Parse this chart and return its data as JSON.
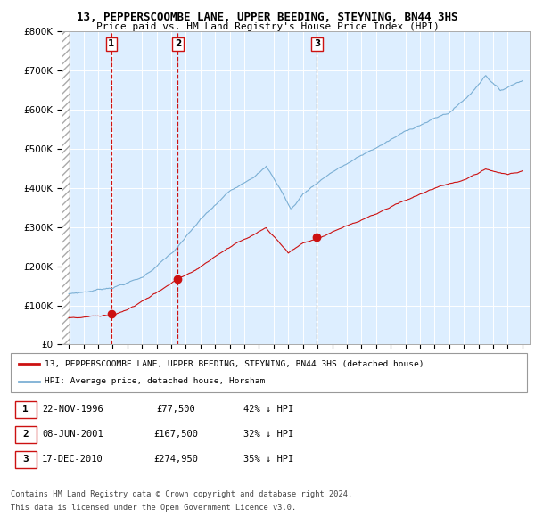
{
  "title_line1": "13, PEPPERSCOOMBE LANE, UPPER BEEDING, STEYNING, BN44 3HS",
  "title_line2": "Price paid vs. HM Land Registry's House Price Index (HPI)",
  "ylim": [
    0,
    800000
  ],
  "yticks": [
    0,
    100000,
    200000,
    300000,
    400000,
    500000,
    600000,
    700000,
    800000
  ],
  "ytick_labels": [
    "£0",
    "£100K",
    "£200K",
    "£300K",
    "£400K",
    "£500K",
    "£600K",
    "£700K",
    "£800K"
  ],
  "hpi_color": "#7bafd4",
  "price_color": "#cc1111",
  "plot_bg_color": "#ddeeff",
  "legend_house": "13, PEPPERSCOOMBE LANE, UPPER BEEDING, STEYNING, BN44 3HS (detached house)",
  "legend_hpi": "HPI: Average price, detached house, Horsham",
  "transactions": [
    {
      "num": 1,
      "date": "22-NOV-1996",
      "price": 77500,
      "pct": "42%",
      "dir": "↓",
      "year": 1996.9,
      "line_color": "#cc1111"
    },
    {
      "num": 2,
      "date": "08-JUN-2001",
      "price": 167500,
      "pct": "32%",
      "dir": "↓",
      "year": 2001.45,
      "line_color": "#cc1111"
    },
    {
      "num": 3,
      "date": "17-DEC-2010",
      "price": 274950,
      "pct": "35%",
      "dir": "↓",
      "year": 2010.96,
      "line_color": "#888888"
    }
  ],
  "footer_line1": "Contains HM Land Registry data © Crown copyright and database right 2024.",
  "footer_line2": "This data is licensed under the Open Government Licence v3.0."
}
